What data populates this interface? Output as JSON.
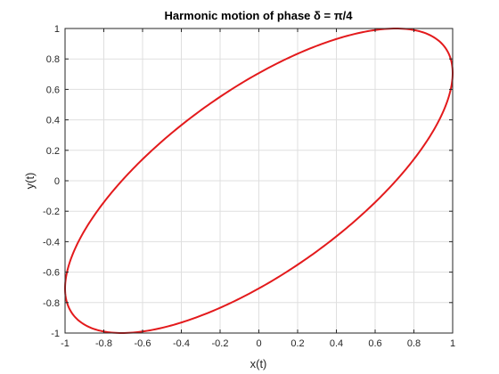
{
  "chart_data": {
    "type": "line",
    "title": "Harmonic motion of phase δ = π/4",
    "xlabel": "x(t)",
    "ylabel": "y(t)",
    "xlim": [
      -1,
      1
    ],
    "ylim": [
      -1,
      1
    ],
    "xticks": [
      -1,
      -0.8,
      -0.6,
      -0.4,
      -0.2,
      0,
      0.2,
      0.4,
      0.6,
      0.8,
      1
    ],
    "yticks": [
      -1,
      -0.8,
      -0.6,
      -0.4,
      -0.2,
      0,
      0.2,
      0.4,
      0.6,
      0.8,
      1
    ],
    "xtick_labels": [
      "-1",
      "-0.8",
      "-0.6",
      "-0.4",
      "-0.2",
      "0",
      "0.2",
      "0.4",
      "0.6",
      "0.8",
      "1"
    ],
    "ytick_labels": [
      "-1",
      "-0.8",
      "-0.6",
      "-0.4",
      "-0.2",
      "0",
      "0.2",
      "0.4",
      "0.6",
      "0.8",
      "1"
    ],
    "grid": true,
    "series": [
      {
        "color": "#e31a1c",
        "parametric": {
          "x": "sin(t)",
          "y": "sin(t + π/4)",
          "t_range": [
            0,
            6.2832
          ]
        }
      }
    ]
  }
}
